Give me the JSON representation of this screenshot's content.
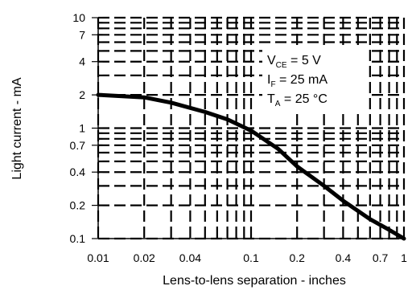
{
  "chart_data": {
    "type": "line",
    "xlabel": "Lens-to-lens separation - inches",
    "ylabel": "Light current - mA",
    "x_scale": "log",
    "y_scale": "log",
    "xlim": [
      0.01,
      1
    ],
    "ylim": [
      0.1,
      10
    ],
    "x_ticks": [
      "0.01",
      "0.02",
      "0.04",
      "0.1",
      "0.2",
      "0.4",
      "0.7",
      "1"
    ],
    "y_ticks": [
      "10",
      "7",
      "4",
      "2",
      "1",
      "0.7",
      "0.4",
      "0.2",
      "0.1"
    ],
    "grid": true,
    "series": [
      {
        "x": [
          0.01,
          0.02,
          0.03,
          0.05,
          0.07,
          0.1,
          0.15,
          0.2,
          0.3,
          0.4,
          0.6,
          0.8,
          1.0
        ],
        "y": [
          2.0,
          1.9,
          1.7,
          1.4,
          1.2,
          0.95,
          0.65,
          0.45,
          0.3,
          0.22,
          0.15,
          0.12,
          0.1
        ]
      }
    ],
    "annotations": [
      {
        "main": "V",
        "sub": "CE",
        "rest": " = 5 V"
      },
      {
        "main": "I",
        "sub": "F",
        "rest": " = 25 mA"
      },
      {
        "main": "T",
        "sub": "A",
        "rest": " = 25 °C"
      }
    ]
  }
}
